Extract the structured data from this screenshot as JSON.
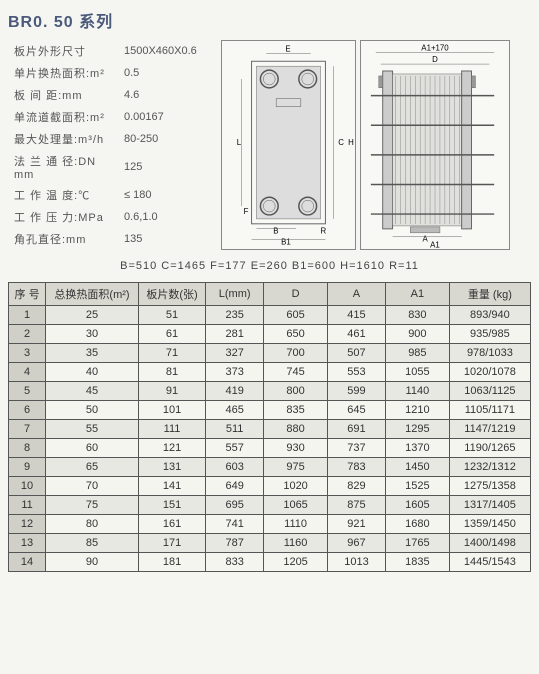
{
  "title": "BR0. 50 系列",
  "specs": [
    {
      "label": "板片外形尺寸",
      "value": "1500X460X0.6"
    },
    {
      "label": "单片换热面积:m²",
      "value": "0.5"
    },
    {
      "label": "板 间 距:mm",
      "value": "4.6"
    },
    {
      "label": "单流道截面积:m²",
      "value": "0.00167"
    },
    {
      "label": "最大处理量:m³/h",
      "value": "80-250"
    },
    {
      "label": "法 兰 通 径:DN mm",
      "value": "125"
    },
    {
      "label": "工 作 温 度:℃",
      "value": "≤ 180"
    },
    {
      "label": "工 作 压 力:MPa",
      "value": "0.6,1.0"
    },
    {
      "label": "角孔直径:mm",
      "value": "135"
    }
  ],
  "diagram_labels": {
    "top1": "A1+170",
    "top2": "D",
    "E": "E",
    "L": "L",
    "C": "C",
    "H": "H",
    "F": "F",
    "B": "B",
    "R": "R",
    "B1": "B1",
    "A": "A",
    "A1": "A1"
  },
  "dims_text": "B=510   C=1465   F=177   E=260   B1=600   H=1610   R=11",
  "table": {
    "headers": [
      "序 号",
      "总换热面积(m²)",
      "板片数(张)",
      "L(mm)",
      "D",
      "A",
      "A1",
      "重量 (kg)"
    ],
    "col_widths": [
      "32px",
      "80px",
      "58px",
      "50px",
      "55px",
      "50px",
      "55px",
      "70px"
    ],
    "rows": [
      [
        "1",
        "25",
        "51",
        "235",
        "605",
        "415",
        "830",
        "893/940"
      ],
      [
        "2",
        "30",
        "61",
        "281",
        "650",
        "461",
        "900",
        "935/985"
      ],
      [
        "3",
        "35",
        "71",
        "327",
        "700",
        "507",
        "985",
        "978/1033"
      ],
      [
        "4",
        "40",
        "81",
        "373",
        "745",
        "553",
        "1055",
        "1020/1078"
      ],
      [
        "5",
        "45",
        "91",
        "419",
        "800",
        "599",
        "1140",
        "1063/1125"
      ],
      [
        "6",
        "50",
        "101",
        "465",
        "835",
        "645",
        "1210",
        "1105/1171"
      ],
      [
        "7",
        "55",
        "111",
        "511",
        "880",
        "691",
        "1295",
        "1147/1219"
      ],
      [
        "8",
        "60",
        "121",
        "557",
        "930",
        "737",
        "1370",
        "1190/1265"
      ],
      [
        "9",
        "65",
        "131",
        "603",
        "975",
        "783",
        "1450",
        "1232/1312"
      ],
      [
        "10",
        "70",
        "141",
        "649",
        "1020",
        "829",
        "1525",
        "1275/1358"
      ],
      [
        "11",
        "75",
        "151",
        "695",
        "1065",
        "875",
        "1605",
        "1317/1405"
      ],
      [
        "12",
        "80",
        "161",
        "741",
        "1110",
        "921",
        "1680",
        "1359/1450"
      ],
      [
        "13",
        "85",
        "171",
        "787",
        "1160",
        "967",
        "1765",
        "1400/1498"
      ],
      [
        "14",
        "90",
        "181",
        "833",
        "1205",
        "1013",
        "1835",
        "1445/1543"
      ]
    ]
  },
  "colors": {
    "title": "#4a5a7a",
    "border": "#555555",
    "header_bg": "#d8d8d0",
    "row_odd_bg": "#e8e8e2",
    "row_even_bg": "#f5f5f0",
    "first_col_bg": "#d0d0c8",
    "page_bg": "#f5f5f2"
  }
}
